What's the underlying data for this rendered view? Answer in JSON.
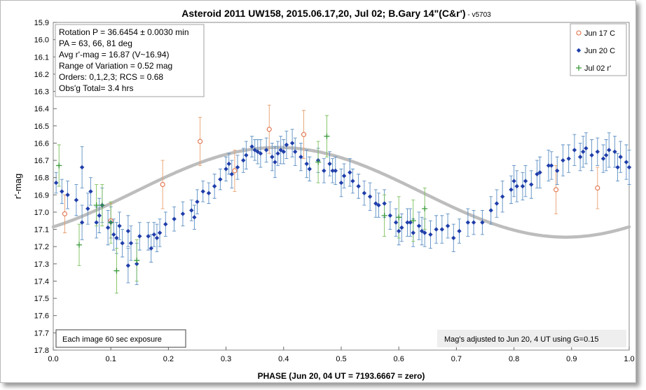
{
  "chart_data": {
    "type": "scatter",
    "title": "Asteroid 2011 UW158, 2015.06.17,20, Jul 02; B.Gary 14\"(C&r')",
    "title_suffix": " - v5703",
    "xlabel": "PHASE (Jun 20, 04 UT = 7193.6667 = zero)",
    "ylabel": "r'-mag",
    "xlim": [
      0.0,
      1.0
    ],
    "ylim": [
      15.9,
      17.8
    ],
    "y_inverted": true,
    "x_ticks": [
      "0.0",
      "0.1",
      "0.2",
      "0.3",
      "0.4",
      "0.5",
      "0.6",
      "0.7",
      "0.8",
      "0.9",
      "1.0"
    ],
    "y_ticks": [
      "15.9",
      "16.0",
      "16.1",
      "16.2",
      "16.3",
      "16.4",
      "16.5",
      "16.6",
      "16.7",
      "16.8",
      "16.9",
      "17.0",
      "17.1",
      "17.2",
      "17.3",
      "17.4",
      "17.5",
      "17.6",
      "17.7",
      "17.8"
    ],
    "grid": false,
    "legend_position": "top-right",
    "info_lines": [
      "Rotation P = 36.6454 ± 0.0030 min",
      "PA =  63, 66, 81 deg",
      "Avg r'-mag = 16.87 (V~16.94)",
      "Range of Variation = 0.52 mag",
      "Orders: 0,1,2,3; RCS = 0.68",
      "Obs'g Total= 3.4 hrs"
    ],
    "note_left": "Each image 60 sec exposure",
    "note_right": "Mag's adjusted to Jun 20, 4 UT using G=0.15",
    "model": {
      "name": "",
      "mean": 16.885,
      "amp": 0.26,
      "phase_of_max_brightness": 0.39,
      "color": "#bdbdbd"
    },
    "series": [
      {
        "name": "Jun 17 C",
        "marker": "circle",
        "color": "#e07048",
        "err_color": "#e8a070",
        "points": [
          [
            0.02,
            17.01,
            0.11
          ],
          [
            0.1,
            17.05,
            0.1
          ],
          [
            0.19,
            16.84,
            0.14
          ],
          [
            0.255,
            16.59,
            0.14
          ],
          [
            0.315,
            16.76,
            0.12
          ],
          [
            0.375,
            16.52,
            0.14
          ],
          [
            0.435,
            16.55,
            0.14
          ],
          [
            0.873,
            16.87,
            0.14
          ],
          [
            0.945,
            16.86,
            0.12
          ]
        ]
      },
      {
        "name": "Jun 20 C",
        "marker": "diamond",
        "color": "#1f3eaa",
        "err_color": "#5b8fc4",
        "points": [
          [
            0.005,
            16.83,
            0.06
          ],
          [
            0.015,
            16.88,
            0.07
          ],
          [
            0.025,
            16.9,
            0.08
          ],
          [
            0.04,
            16.93,
            0.09
          ],
          [
            0.05,
            17.06,
            0.1
          ],
          [
            0.05,
            16.74,
            0.12
          ],
          [
            0.06,
            16.98,
            0.09
          ],
          [
            0.065,
            16.88,
            0.08
          ],
          [
            0.075,
            17.06,
            0.09
          ],
          [
            0.08,
            17.02,
            0.1
          ],
          [
            0.085,
            16.96,
            0.1
          ],
          [
            0.095,
            17.09,
            0.1
          ],
          [
            0.1,
            17.06,
            0.09
          ],
          [
            0.105,
            17.13,
            0.09
          ],
          [
            0.11,
            17.15,
            0.09
          ],
          [
            0.115,
            17.08,
            0.08
          ],
          [
            0.12,
            17.18,
            0.08
          ],
          [
            0.13,
            17.11,
            0.09
          ],
          [
            0.135,
            17.18,
            0.1
          ],
          [
            0.13,
            17.31,
            0.1
          ],
          [
            0.145,
            17.3,
            0.12
          ],
          [
            0.15,
            17.14,
            0.08
          ],
          [
            0.165,
            17.14,
            0.08
          ],
          [
            0.17,
            17.21,
            0.08
          ],
          [
            0.175,
            17.13,
            0.07
          ],
          [
            0.185,
            17.12,
            0.08
          ],
          [
            0.18,
            17.15,
            0.08
          ],
          [
            0.195,
            17.07,
            0.07
          ],
          [
            0.21,
            17.04,
            0.07
          ],
          [
            0.225,
            17.01,
            0.07
          ],
          [
            0.24,
            16.99,
            0.06
          ],
          [
            0.25,
            16.94,
            0.07
          ],
          [
            0.245,
            17.03,
            0.07
          ],
          [
            0.26,
            16.88,
            0.06
          ],
          [
            0.27,
            16.89,
            0.06
          ],
          [
            0.28,
            16.85,
            0.07
          ],
          [
            0.29,
            16.81,
            0.06
          ],
          [
            0.3,
            16.75,
            0.07
          ],
          [
            0.305,
            16.72,
            0.06
          ],
          [
            0.31,
            16.78,
            0.08
          ],
          [
            0.32,
            16.74,
            0.07
          ],
          [
            0.33,
            16.7,
            0.07
          ],
          [
            0.335,
            16.67,
            0.08
          ],
          [
            0.345,
            16.62,
            0.06
          ],
          [
            0.35,
            16.64,
            0.06
          ],
          [
            0.355,
            16.65,
            0.07
          ],
          [
            0.36,
            16.66,
            0.08
          ],
          [
            0.37,
            16.64,
            0.07
          ],
          [
            0.38,
            16.68,
            0.08
          ],
          [
            0.385,
            16.71,
            0.09
          ],
          [
            0.39,
            16.66,
            0.07
          ],
          [
            0.395,
            16.64,
            0.08
          ],
          [
            0.4,
            16.65,
            0.07
          ],
          [
            0.405,
            16.61,
            0.08
          ],
          [
            0.415,
            16.6,
            0.08
          ],
          [
            0.42,
            16.65,
            0.08
          ],
          [
            0.43,
            16.68,
            0.08
          ],
          [
            0.44,
            16.72,
            0.08
          ],
          [
            0.445,
            16.75,
            0.07
          ],
          [
            0.46,
            16.7,
            0.07
          ],
          [
            0.47,
            16.76,
            0.07
          ],
          [
            0.48,
            16.72,
            0.07
          ],
          [
            0.485,
            16.76,
            0.07
          ],
          [
            0.49,
            16.76,
            0.08
          ],
          [
            0.5,
            16.83,
            0.08
          ],
          [
            0.505,
            16.79,
            0.07
          ],
          [
            0.515,
            16.77,
            0.08
          ],
          [
            0.52,
            16.82,
            0.07
          ],
          [
            0.53,
            16.85,
            0.07
          ],
          [
            0.54,
            16.89,
            0.07
          ],
          [
            0.55,
            16.91,
            0.08
          ],
          [
            0.56,
            16.95,
            0.08
          ],
          [
            0.565,
            16.96,
            0.07
          ],
          [
            0.575,
            16.95,
            0.08
          ],
          [
            0.585,
            17.02,
            0.08
          ],
          [
            0.595,
            17.06,
            0.08
          ],
          [
            0.6,
            17.11,
            0.08
          ],
          [
            0.605,
            17.09,
            0.08
          ],
          [
            0.615,
            17.06,
            0.08
          ],
          [
            0.62,
            17.06,
            0.08
          ],
          [
            0.625,
            17.12,
            0.08
          ],
          [
            0.635,
            17.08,
            0.08
          ],
          [
            0.64,
            17.11,
            0.08
          ],
          [
            0.645,
            17.12,
            0.08
          ],
          [
            0.655,
            17.13,
            0.08
          ],
          [
            0.665,
            17.1,
            0.08
          ],
          [
            0.675,
            17.1,
            0.08
          ],
          [
            0.685,
            17.08,
            0.07
          ],
          [
            0.695,
            17.15,
            0.08
          ],
          [
            0.705,
            17.11,
            0.07
          ],
          [
            0.72,
            17.06,
            0.08
          ],
          [
            0.73,
            17.06,
            0.07
          ],
          [
            0.745,
            17.06,
            0.07
          ],
          [
            0.76,
            16.99,
            0.08
          ],
          [
            0.77,
            16.95,
            0.08
          ],
          [
            0.78,
            16.91,
            0.09
          ],
          [
            0.795,
            16.87,
            0.08
          ],
          [
            0.8,
            16.82,
            0.09
          ],
          [
            0.805,
            16.85,
            0.09
          ],
          [
            0.815,
            16.85,
            0.08
          ],
          [
            0.82,
            16.82,
            0.09
          ],
          [
            0.83,
            16.84,
            0.08
          ],
          [
            0.84,
            16.78,
            0.08
          ],
          [
            0.845,
            16.77,
            0.09
          ],
          [
            0.86,
            16.73,
            0.09
          ],
          [
            0.865,
            16.73,
            0.08
          ],
          [
            0.875,
            16.76,
            0.08
          ],
          [
            0.885,
            16.7,
            0.09
          ],
          [
            0.895,
            16.69,
            0.08
          ],
          [
            0.905,
            16.64,
            0.09
          ],
          [
            0.915,
            16.68,
            0.08
          ],
          [
            0.92,
            16.65,
            0.09
          ],
          [
            0.925,
            16.63,
            0.09
          ],
          [
            0.935,
            16.67,
            0.09
          ],
          [
            0.945,
            16.65,
            0.08
          ],
          [
            0.955,
            16.69,
            0.08
          ],
          [
            0.96,
            16.67,
            0.09
          ],
          [
            0.965,
            16.64,
            0.1
          ],
          [
            0.975,
            16.65,
            0.09
          ],
          [
            0.98,
            16.74,
            0.08
          ],
          [
            0.985,
            16.68,
            0.09
          ],
          [
            0.995,
            16.71,
            0.1
          ],
          [
            1.0,
            16.74,
            0.1
          ]
        ]
      },
      {
        "name": "Jul 02 r'",
        "marker": "plus",
        "color": "#3a9a3a",
        "err_color": "#7cc05c",
        "points": [
          [
            0.01,
            16.73,
            0.12
          ],
          [
            0.045,
            17.19,
            0.12
          ],
          [
            0.075,
            16.96,
            0.12
          ],
          [
            0.085,
            16.96,
            0.12
          ],
          [
            0.1,
            17.06,
            0.12
          ],
          [
            0.11,
            17.34,
            0.13
          ],
          [
            0.145,
            17.28,
            0.12
          ],
          [
            0.46,
            16.71,
            0.12
          ],
          [
            0.475,
            16.56,
            0.12
          ],
          [
            0.575,
            17.02,
            0.12
          ],
          [
            0.6,
            17.03,
            0.12
          ],
          [
            0.625,
            17.05,
            0.12
          ],
          [
            0.645,
            16.98,
            0.12
          ]
        ]
      }
    ]
  }
}
